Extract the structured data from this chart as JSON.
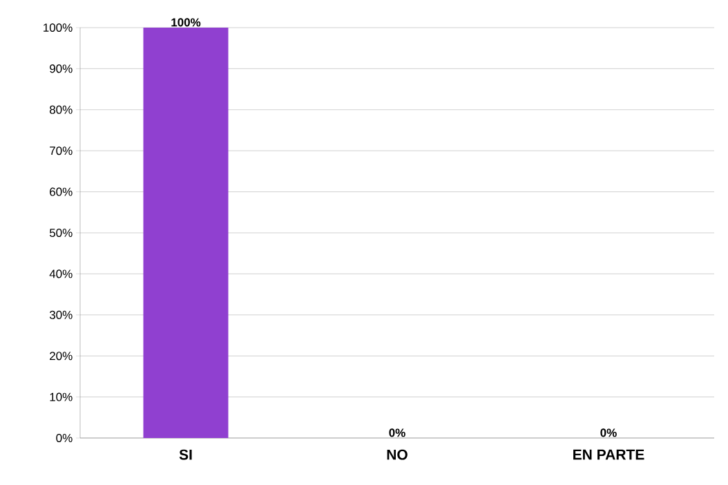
{
  "chart_data": {
    "type": "bar",
    "categories": [
      "SI",
      "NO",
      "EN PARTE"
    ],
    "values": [
      100,
      0,
      0
    ],
    "color": "#9040d0",
    "value_labels": [
      "100%",
      "0%",
      "0%"
    ],
    "ylim": [
      0,
      100
    ],
    "yticks": [
      {
        "value": 0,
        "label": "0%"
      },
      {
        "value": 10,
        "label": "10%"
      },
      {
        "value": 20,
        "label": "20%"
      },
      {
        "value": 30,
        "label": "30%"
      },
      {
        "value": 40,
        "label": "40%"
      },
      {
        "value": 50,
        "label": "50%"
      },
      {
        "value": 60,
        "label": "60%"
      },
      {
        "value": 70,
        "label": "70%"
      },
      {
        "value": 80,
        "label": "80%"
      },
      {
        "value": 90,
        "label": "90%"
      },
      {
        "value": 100,
        "label": "100%"
      }
    ],
    "grid": "y"
  }
}
